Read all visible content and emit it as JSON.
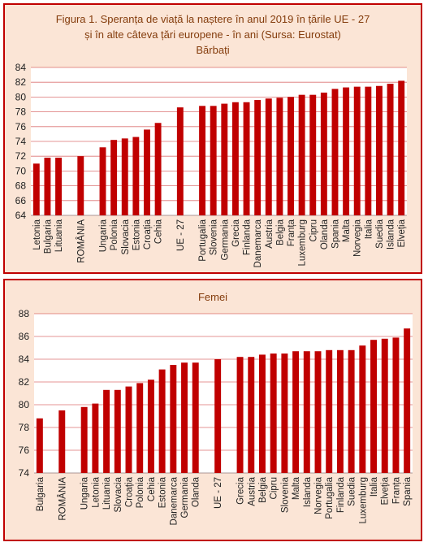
{
  "colors": {
    "bar": "#c00000",
    "grid": "#c00000",
    "text": "#843c0c",
    "plot_bg": "#ffffff",
    "panel_bg": "#fbe5d6"
  },
  "figure": {
    "title_line1": "Figura 1. Speranța de viață la naștere în anul 2019  în țările UE  - 27",
    "title_line2": "și în alte câteva țări europene - în ani (Sursa: Eurostat)"
  },
  "chart_data": [
    {
      "type": "bar",
      "title": "Bărbați",
      "xlabel": "",
      "ylabel": "",
      "ylim": [
        64,
        84
      ],
      "yticks": [
        64,
        66,
        68,
        70,
        72,
        74,
        76,
        78,
        80,
        82,
        84
      ],
      "grid": true,
      "categories": [
        "Letonia",
        "Bulgaria",
        "Lituania",
        "",
        "ROMÂNIA",
        "",
        "Ungaria",
        "Polonia",
        "Slovacia",
        "Estonia",
        "Croația",
        "Cehia",
        "",
        "UE - 27",
        "",
        "Portugalia",
        "Slovenia",
        "Germania",
        "Grecia",
        "Finlanda",
        "Danemarca",
        "Austria",
        "Belgia",
        "Franța",
        "Luxemburg",
        "Cipru",
        "Olanda",
        "Spania",
        "Malta",
        "Norvegia",
        "Italia",
        "Suedia",
        "Islanda",
        "Elveția"
      ],
      "values": [
        71.0,
        71.8,
        71.8,
        null,
        72.0,
        null,
        73.2,
        74.2,
        74.4,
        74.6,
        75.6,
        76.5,
        null,
        78.6,
        null,
        78.8,
        78.8,
        79.1,
        79.3,
        79.3,
        79.6,
        79.8,
        79.9,
        80.0,
        80.3,
        80.3,
        80.6,
        81.1,
        81.3,
        81.4,
        81.4,
        81.5,
        81.8,
        82.2
      ]
    },
    {
      "type": "bar",
      "title": "Femei",
      "xlabel": "",
      "ylabel": "",
      "ylim": [
        74,
        88
      ],
      "yticks": [
        74,
        76,
        78,
        80,
        82,
        84,
        86,
        88
      ],
      "grid": true,
      "categories": [
        "Bulgaria",
        "",
        "ROMÂNIA",
        "",
        "Ungaria",
        "Letonia",
        "Lituania",
        "Slovacia",
        "Croația",
        "Polonia",
        "Cehia",
        "Estonia",
        "Danemarca",
        "Germania",
        "Olanda",
        "",
        "UE - 27",
        "",
        "Grecia",
        "Austria",
        "Belgia",
        "Cipru",
        "Slovenia",
        "Malta",
        "Islanda",
        "Norvegia",
        "Portugalia",
        "Finlanda",
        "Suedia",
        "Luxemburg",
        "Italia",
        "Elveția",
        "Franța",
        "Spania"
      ],
      "values": [
        78.8,
        null,
        79.5,
        null,
        79.8,
        80.1,
        81.3,
        81.3,
        81.6,
        81.9,
        82.2,
        83.1,
        83.5,
        83.7,
        83.7,
        null,
        84.0,
        null,
        84.2,
        84.2,
        84.4,
        84.5,
        84.5,
        84.7,
        84.7,
        84.7,
        84.8,
        84.8,
        84.8,
        85.2,
        85.7,
        85.8,
        85.9,
        86.7
      ]
    }
  ]
}
